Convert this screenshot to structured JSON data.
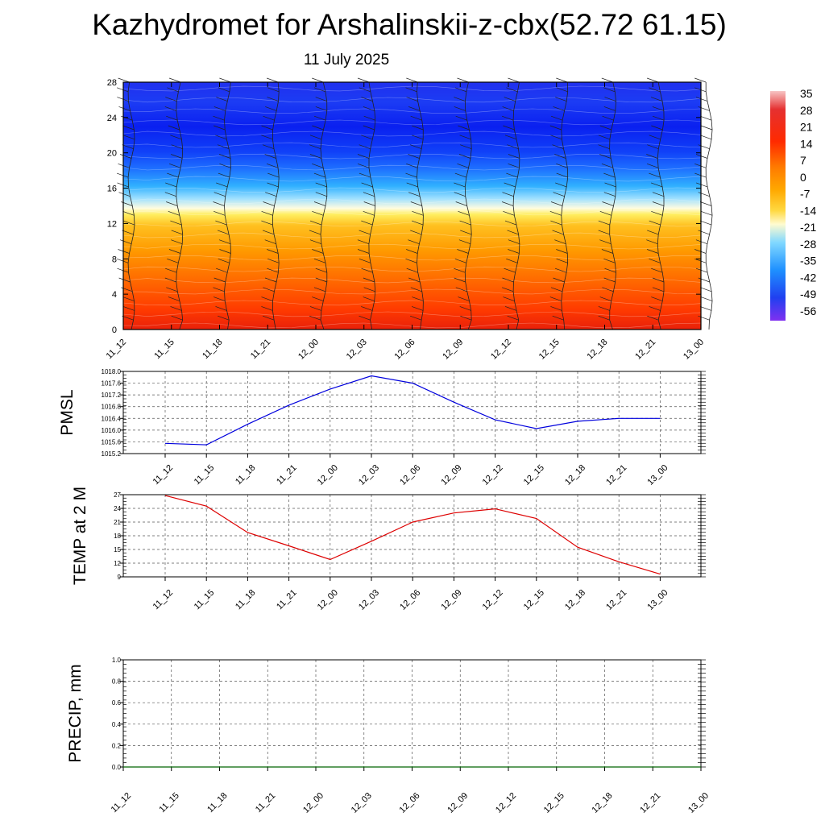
{
  "header": {
    "title": "Kazhydromet for Arshalinskii-z-cbx(52.72 61.15)",
    "subtitle": "11 July 2025"
  },
  "chart_data": [
    {
      "type": "heatmap",
      "name": "temperature-height-section",
      "x_ticks": [
        "11_12",
        "11_15",
        "11_18",
        "11_21",
        "12_00",
        "12_03",
        "12_06",
        "12_09",
        "12_12",
        "12_15",
        "12_18",
        "12_21",
        "13_00"
      ],
      "y_ticks": [
        "0",
        "4",
        "8",
        "12",
        "16",
        "20",
        "24",
        "28"
      ],
      "ylim": [
        0,
        28
      ],
      "colorbar_labels": [
        "35",
        "28",
        "21",
        "14",
        "7",
        "0",
        "-7",
        "-14",
        "-21",
        "-28",
        "-35",
        "-42",
        "-49",
        "-56"
      ],
      "colorbar_stops": [
        {
          "value": 35,
          "color": "#f7c4c4"
        },
        {
          "value": 28,
          "color": "#e02020"
        },
        {
          "value": 14,
          "color": "#ff3000"
        },
        {
          "value": 7,
          "color": "#ff8a00"
        },
        {
          "value": 0,
          "color": "#ffb000"
        },
        {
          "value": -7,
          "color": "#ffe040"
        },
        {
          "value": -14,
          "color": "#fffbd0"
        },
        {
          "value": -21,
          "color": "#80d8ff"
        },
        {
          "value": -35,
          "color": "#1e90ff"
        },
        {
          "value": -49,
          "color": "#2040f0"
        },
        {
          "value": -56,
          "color": "#8030f0"
        }
      ]
    },
    {
      "type": "line",
      "name": "pmsl",
      "ylabel": "PMSL",
      "x": [
        "11_12",
        "11_15",
        "11_18",
        "11_21",
        "12_00",
        "12_03",
        "12_06",
        "12_09",
        "12_12",
        "12_15",
        "12_18",
        "12_21",
        "13_00"
      ],
      "values": [
        1015.55,
        1015.5,
        1016.2,
        1016.85,
        1017.4,
        1017.85,
        1017.6,
        1016.95,
        1016.35,
        1016.05,
        1016.3,
        1016.4,
        1016.4
      ],
      "ylim": [
        1015.2,
        1018.0
      ],
      "y_ticks": [
        "1015.2",
        "1015.6",
        "1016.0",
        "1016.4",
        "1016.8",
        "1017.2",
        "1017.6",
        "1018.0"
      ],
      "line_color": "#0000dd"
    },
    {
      "type": "line",
      "name": "temp-2m",
      "ylabel": "TEMP at 2 M",
      "x": [
        "11_12",
        "11_15",
        "11_18",
        "11_21",
        "12_00",
        "12_03",
        "12_06",
        "12_09",
        "12_12",
        "12_15",
        "12_18",
        "12_21",
        "13_00"
      ],
      "values": [
        26.8,
        24.5,
        18.7,
        15.8,
        12.8,
        16.8,
        21.0,
        23.0,
        23.9,
        21.8,
        15.5,
        12.3,
        9.6
      ],
      "ylim": [
        9,
        27
      ],
      "y_ticks": [
        "9",
        "12",
        "15",
        "18",
        "21",
        "24",
        "27"
      ],
      "line_color": "#dd0000"
    },
    {
      "type": "line",
      "name": "precip",
      "ylabel": "PRECIP, mm",
      "x": [
        "11_12",
        "11_15",
        "11_18",
        "11_21",
        "12_00",
        "12_03",
        "12_06",
        "12_09",
        "12_12",
        "12_15",
        "12_18",
        "12_21",
        "13_00"
      ],
      "values": [
        0,
        0,
        0,
        0,
        0,
        0,
        0,
        0,
        0,
        0,
        0,
        0,
        0
      ],
      "ylim": [
        0,
        1.0
      ],
      "y_ticks": [
        "0.0",
        "0.2",
        "0.4",
        "0.6",
        "0.8",
        "1.0"
      ],
      "line_color": "#006400"
    }
  ]
}
